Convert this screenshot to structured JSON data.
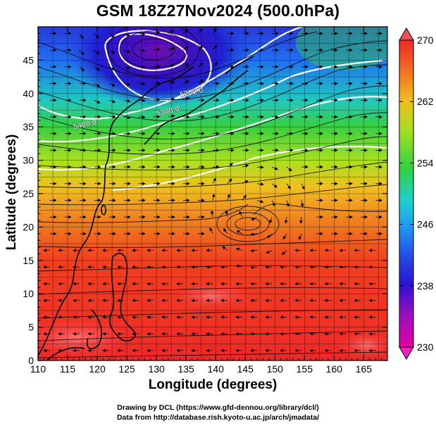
{
  "title": "GSM 18Z27Nov2024 (500.0hPa)",
  "x_axis": {
    "label": "Longitude (degrees)",
    "min": 110,
    "max": 169,
    "ticks": [
      110,
      115,
      120,
      125,
      130,
      135,
      140,
      145,
      150,
      155,
      160,
      165
    ],
    "tick_labels": [
      "110",
      "115",
      "120",
      "125",
      "130",
      "135",
      "140",
      "145",
      "150",
      "155",
      "160",
      "165"
    ]
  },
  "y_axis": {
    "label": "Latitude (degrees)",
    "min": 0,
    "max": 50,
    "ticks": [
      0,
      5,
      10,
      15,
      20,
      25,
      30,
      35,
      40,
      45
    ],
    "tick_labels": [
      "0",
      "5",
      "10",
      "15",
      "20",
      "25",
      "30",
      "35",
      "40",
      "45"
    ]
  },
  "colorbar": {
    "min": 230,
    "max": 270,
    "ticks": [
      230,
      238,
      246,
      254,
      262,
      270
    ],
    "tick_labels": [
      "230",
      "238",
      "246",
      "254",
      "262",
      "270"
    ],
    "colors": [
      "#e000a0",
      "#8010c0",
      "#2020d8",
      "#2090f0",
      "#20d0d0",
      "#30d040",
      "#a0e020",
      "#f0d020",
      "#f08020",
      "#f02020",
      "#f04040"
    ]
  },
  "contour_labels": [
    {
      "text": "5200.0",
      "lon": 136,
      "lat": 39.8
    },
    {
      "text": "5300.0",
      "lon": 132,
      "lat": 37
    },
    {
      "text": "5400.0",
      "lon": 118,
      "lat": 35
    }
  ],
  "features": {
    "low_center": {
      "lon": 128,
      "lat": 47
    },
    "anticyclone_center": {
      "lon": 146.5,
      "lat": 22.5
    }
  },
  "credits": {
    "line1": "Drawing by DCL (https://www.gfd-dennou.org/library/dcl/)",
    "line2": "Data from http://database.rish.kyoto-u.ac.jp/arch/jmadata/"
  },
  "chart_data": {
    "type": "heatmap",
    "title": "GSM 18Z27Nov2024 (500.0hPa)",
    "xlabel": "Longitude (degrees)",
    "ylabel": "Latitude (degrees)",
    "xlim": [
      110,
      169
    ],
    "ylim": [
      0,
      50
    ],
    "colorbar_range": [
      230,
      270
    ],
    "contour_levels": [
      5200.0,
      5300.0,
      5400.0
    ],
    "grid": true
  }
}
